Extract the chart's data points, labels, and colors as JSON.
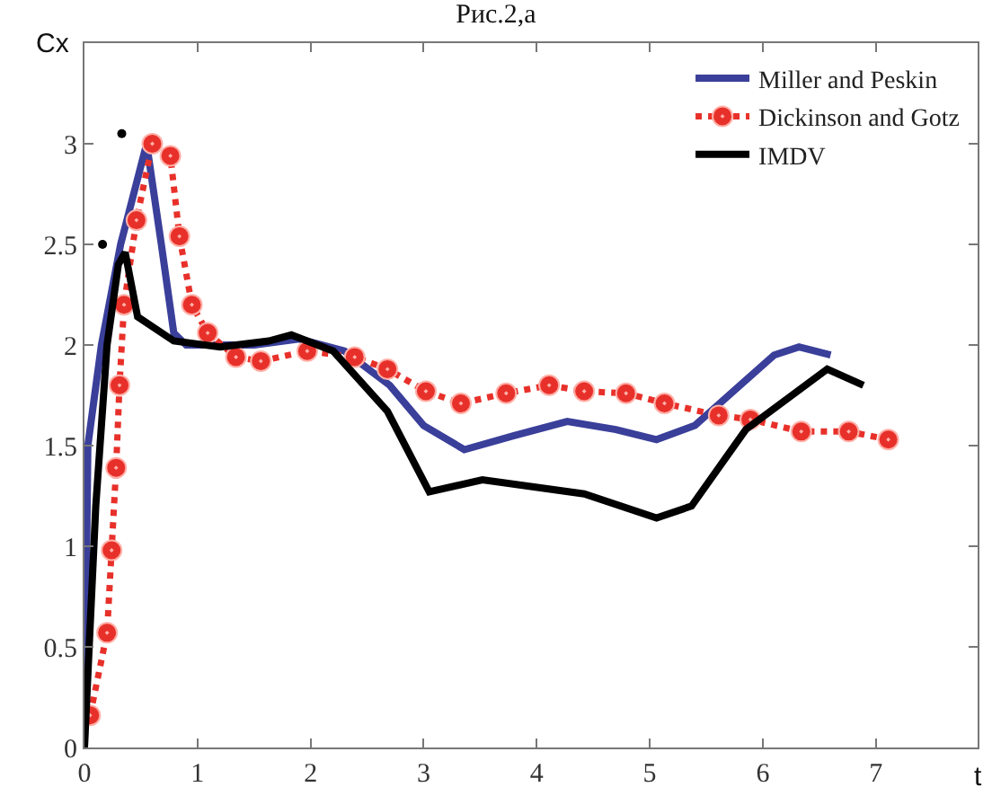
{
  "chart_data": {
    "type": "line",
    "title": "Рис.2,а",
    "xlabel": "t",
    "ylabel": "Cx",
    "xlim": [
      0,
      7.9
    ],
    "ylim": [
      0,
      3.5
    ],
    "xticks": [
      0,
      1,
      2,
      3,
      4,
      5,
      6,
      7
    ],
    "yticks": [
      0,
      0.5,
      1,
      1.5,
      2,
      2.5,
      3
    ],
    "grid": false,
    "legend": "top right",
    "series": [
      {
        "name": "Miller and Peskin",
        "color": "#3a3f9a",
        "line_style": "solid",
        "marker": "none",
        "x": [
          0,
          0.03,
          0.15,
          0.32,
          0.55,
          0.68,
          0.79,
          0.9,
          1.5,
          1.9,
          2.3,
          2.7,
          3.0,
          3.36,
          3.8,
          4.27,
          4.7,
          5.06,
          5.4,
          5.8,
          6.1,
          6.32,
          6.6
        ],
        "values": [
          0,
          1.5,
          2.0,
          2.5,
          3.0,
          2.5,
          2.06,
          2.0,
          2.0,
          2.03,
          1.97,
          1.8,
          1.6,
          1.48,
          1.55,
          1.62,
          1.58,
          1.53,
          1.6,
          1.8,
          1.95,
          1.99,
          1.95
        ]
      },
      {
        "name": "Dickinson and Gotz",
        "color": "#e8302a",
        "line_style": "dotted",
        "marker": "circle",
        "x": [
          0.05,
          0.2,
          0.24,
          0.28,
          0.31,
          0.35,
          0.46,
          0.6,
          0.76,
          0.84,
          0.95,
          1.09,
          1.34,
          1.56,
          1.97,
          2.39,
          2.68,
          3.02,
          3.33,
          3.73,
          4.11,
          4.42,
          4.79,
          5.13,
          5.61,
          5.89,
          6.34,
          6.76,
          7.11
        ],
        "values": [
          0.16,
          0.57,
          0.98,
          1.39,
          1.8,
          2.2,
          2.62,
          3.0,
          2.94,
          2.54,
          2.2,
          2.06,
          1.94,
          1.92,
          1.97,
          1.94,
          1.88,
          1.77,
          1.71,
          1.76,
          1.8,
          1.77,
          1.76,
          1.71,
          1.65,
          1.63,
          1.57,
          1.57,
          1.53
        ]
      },
      {
        "name": "IMDV",
        "color": "#000000",
        "line_style": "solid",
        "marker": "none",
        "x": [
          0,
          0.1,
          0.2,
          0.3,
          0.36,
          0.47,
          0.79,
          1.2,
          1.63,
          1.83,
          2.2,
          2.68,
          3.05,
          3.52,
          4.42,
          5.06,
          5.37,
          5.85,
          6.57,
          6.89
        ],
        "values": [
          0,
          1.2,
          2.0,
          2.4,
          2.46,
          2.14,
          2.02,
          1.99,
          2.02,
          2.05,
          1.97,
          1.67,
          1.27,
          1.33,
          1.26,
          1.14,
          1.2,
          1.58,
          1.88,
          1.8
        ]
      },
      {
        "type": "scatter",
        "color": "#000000",
        "marker": "circle",
        "x": [
          0.16,
          0.33
        ],
        "values": [
          2.5,
          3.05
        ]
      }
    ]
  }
}
